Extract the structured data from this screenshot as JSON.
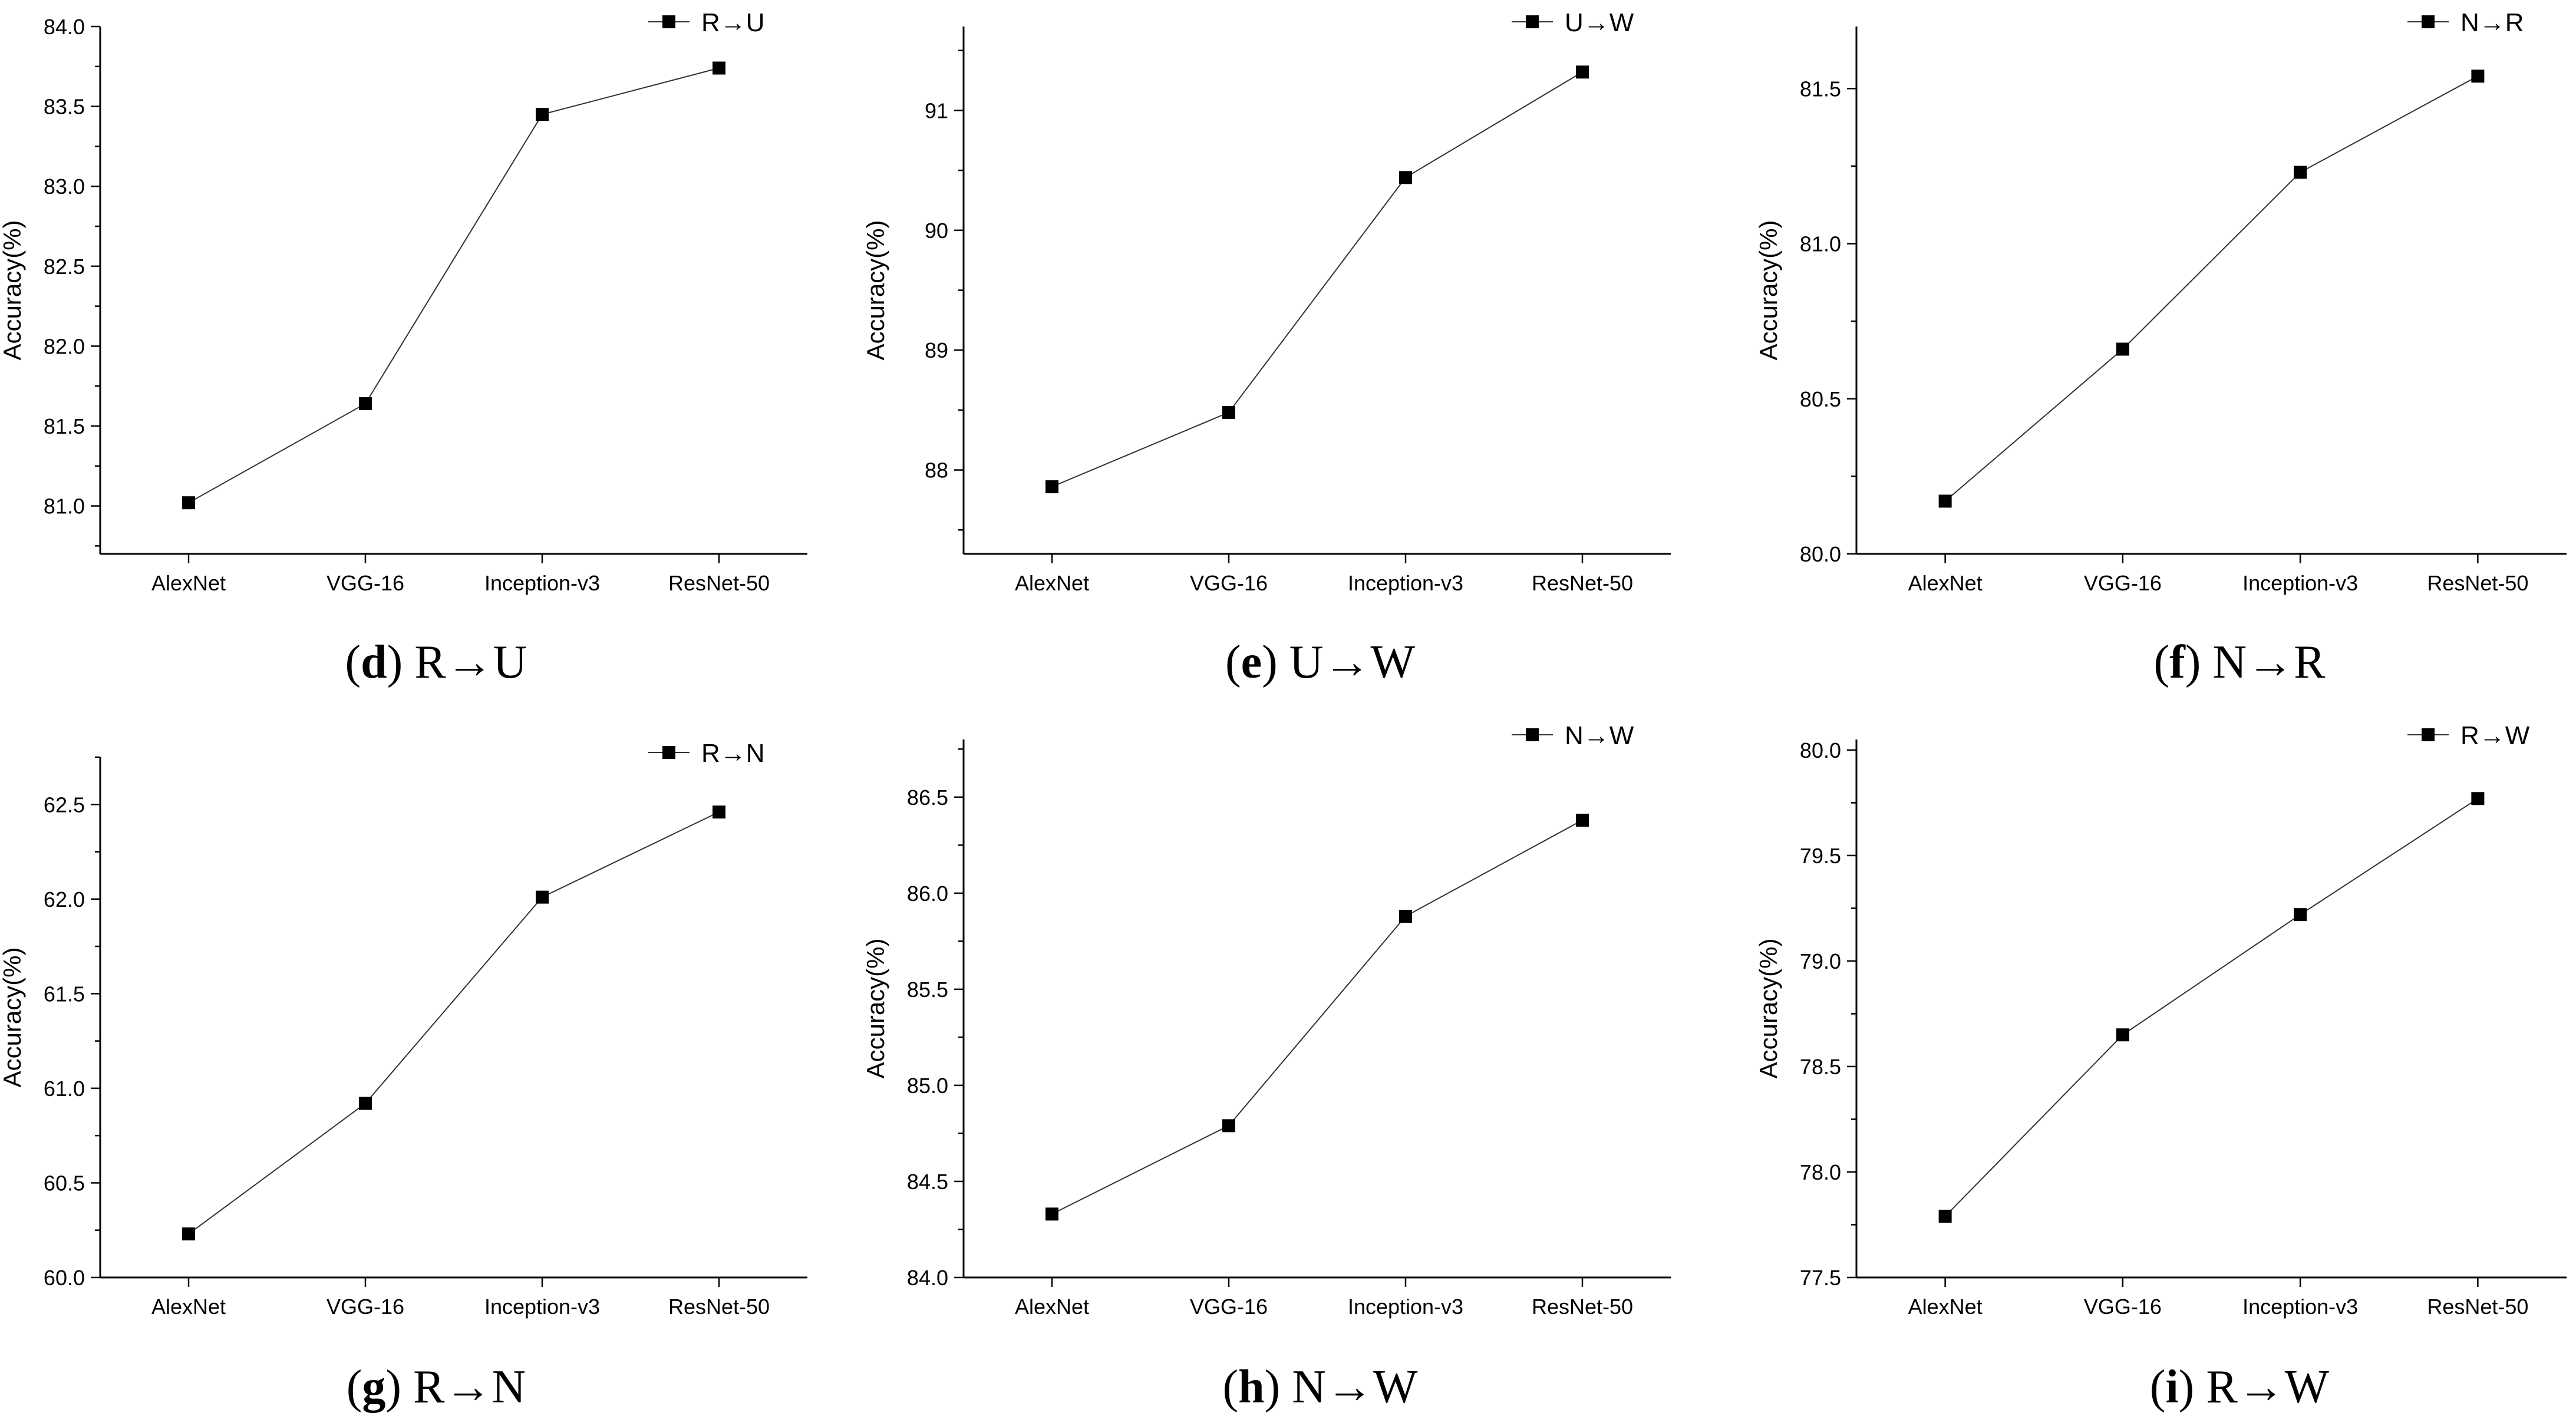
{
  "chart_data": [
    {
      "type": "line",
      "caption_letter": "d",
      "caption_text": "R→U",
      "legend": "R→U",
      "ylabel": "Accuracy(%)",
      "categories": [
        "AlexNet",
        "VGG-16",
        "Inception-v3",
        "ResNet-50"
      ],
      "values": [
        81.02,
        81.64,
        83.45,
        83.74
      ],
      "ylim": [
        80.7,
        84.0
      ],
      "yticks": [
        "81.0",
        "81.5",
        "82.0",
        "82.5",
        "83.0",
        "83.5",
        "84.0"
      ],
      "ytick_values": [
        81.0,
        81.5,
        82.0,
        82.5,
        83.0,
        83.5,
        84.0
      ]
    },
    {
      "type": "line",
      "caption_letter": "e",
      "caption_text": "U→W",
      "legend": "U→W",
      "ylabel": "Accuracy(%)",
      "categories": [
        "AlexNet",
        "VGG-16",
        "Inception-v3",
        "ResNet-50"
      ],
      "values": [
        87.86,
        88.48,
        90.44,
        91.32
      ],
      "ylim": [
        87.3,
        91.7
      ],
      "yticks": [
        "88",
        "89",
        "90",
        "91"
      ],
      "ytick_values": [
        88,
        89,
        90,
        91
      ]
    },
    {
      "type": "line",
      "caption_letter": "f",
      "caption_text": "N→R",
      "legend": "N→R",
      "ylabel": "Accuracy(%)",
      "categories": [
        "AlexNet",
        "VGG-16",
        "Inception-v3",
        "ResNet-50"
      ],
      "values": [
        80.17,
        80.66,
        81.23,
        81.54
      ],
      "ylim": [
        80.0,
        81.7
      ],
      "yticks": [
        "80.0",
        "80.5",
        "81.0",
        "81.5"
      ],
      "ytick_values": [
        80.0,
        80.5,
        81.0,
        81.5
      ]
    },
    {
      "type": "line",
      "caption_letter": "g",
      "caption_text": "R→N",
      "legend": "R→N",
      "ylabel": "Accuracy(%)",
      "categories": [
        "AlexNet",
        "VGG-16",
        "Inception-v3",
        "ResNet-50"
      ],
      "values": [
        60.23,
        60.92,
        62.01,
        62.46
      ],
      "ylim": [
        60.0,
        62.75
      ],
      "yticks": [
        "60.0",
        "60.5",
        "61.0",
        "61.5",
        "62.0",
        "62.5"
      ],
      "ytick_values": [
        60.0,
        60.5,
        61.0,
        61.5,
        62.0,
        62.5
      ]
    },
    {
      "type": "line",
      "caption_letter": "h",
      "caption_text": "N→W",
      "legend": "N→W",
      "ylabel": "Accuracy(%)",
      "categories": [
        "AlexNet",
        "VGG-16",
        "Inception-v3",
        "ResNet-50"
      ],
      "values": [
        84.33,
        84.79,
        85.88,
        86.38
      ],
      "ylim": [
        84.0,
        86.8
      ],
      "yticks": [
        "84.0",
        "84.5",
        "85.0",
        "85.5",
        "86.0",
        "86.5"
      ],
      "ytick_values": [
        84.0,
        84.5,
        85.0,
        85.5,
        86.0,
        86.5
      ]
    },
    {
      "type": "line",
      "caption_letter": "i",
      "caption_text": "R→W",
      "legend": "R→W",
      "ylabel": "Accuracy(%)",
      "categories": [
        "AlexNet",
        "VGG-16",
        "Inception-v3",
        "ResNet-50"
      ],
      "values": [
        77.79,
        78.65,
        79.22,
        79.77
      ],
      "ylim": [
        77.5,
        80.05
      ],
      "yticks": [
        "77.5",
        "78.0",
        "78.5",
        "79.0",
        "79.5",
        "80.0"
      ],
      "ytick_values": [
        77.5,
        78.0,
        78.5,
        79.0,
        79.5,
        80.0
      ]
    }
  ]
}
